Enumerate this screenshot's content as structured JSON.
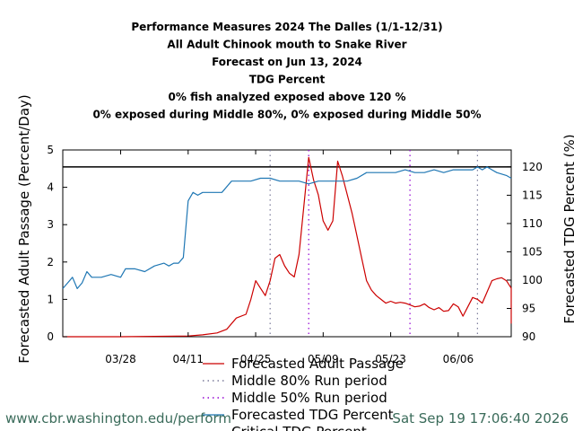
{
  "title_lines": [
    "Performance Measures 2024 The Dalles (1/1-12/31)",
    "All Adult Chinook mouth to Snake River",
    "Forecast on Jun 13, 2024",
    "TDG Percent",
    "0% fish analyzed exposed above 120 %",
    "0% exposed during Middle 80%, 0% exposed during Middle 50%"
  ],
  "footer": {
    "url": "www.cbr.washington.edu/perform",
    "timestamp": "Sat Sep 19 17:06:40 2026"
  },
  "colors": {
    "passage": "#cc0000",
    "tdg": "#1f77b4",
    "mid80": "#7a7a9a",
    "mid50": "#9400d3",
    "critical": "#000000"
  },
  "chart_data": {
    "type": "line",
    "title": "Performance Measures 2024 The Dalles (1/1-12/31)",
    "ylabel": "Forecasted Adult Passage (Percent/Day)",
    "y2label": "Forecasted TDG Percent (%)",
    "ylim": [
      0,
      5
    ],
    "y2lim": [
      90,
      123
    ],
    "xlim": [
      "03/16",
      "06/17"
    ],
    "x_ticks": [
      "03/28",
      "04/11",
      "04/25",
      "05/09",
      "05/23",
      "06/06"
    ],
    "y_ticks": [
      "0",
      "1",
      "2",
      "3",
      "4",
      "5"
    ],
    "y2_ticks": [
      "90",
      "95",
      "100",
      "105",
      "110",
      "115",
      "120"
    ],
    "legend": [
      {
        "label": "Forecasted Adult Passage",
        "style": "line",
        "color": "#cc0000"
      },
      {
        "label": "Middle 80% Run period",
        "style": "dotted",
        "color": "#7a7a9a"
      },
      {
        "label": "Middle 50% Run period",
        "style": "dotted",
        "color": "#9400d3"
      },
      {
        "label": "Forecasted TDG Percent",
        "style": "line",
        "color": "#1f77b4"
      },
      {
        "label": "Critical TDG Percent",
        "style": "line",
        "color": "#000000"
      }
    ],
    "critical_tdg": 120,
    "middle80_period": [
      "04/28",
      "06/10"
    ],
    "middle50_period": [
      "05/06",
      "05/27"
    ],
    "series": [
      {
        "name": "Forecasted Adult Passage",
        "axis": "left",
        "points": [
          [
            "03/16",
            0
          ],
          [
            "03/28",
            0
          ],
          [
            "04/04",
            0.01
          ],
          [
            "04/11",
            0.02
          ],
          [
            "04/14",
            0.05
          ],
          [
            "04/17",
            0.1
          ],
          [
            "04/19",
            0.2
          ],
          [
            "04/21",
            0.5
          ],
          [
            "04/23",
            0.6
          ],
          [
            "04/24",
            1.0
          ],
          [
            "04/25",
            1.5
          ],
          [
            "04/26",
            1.3
          ],
          [
            "04/27",
            1.1
          ],
          [
            "04/28",
            1.5
          ],
          [
            "04/29",
            2.1
          ],
          [
            "04/30",
            2.2
          ],
          [
            "05/01",
            1.9
          ],
          [
            "05/02",
            1.7
          ],
          [
            "05/03",
            1.6
          ],
          [
            "05/04",
            2.2
          ],
          [
            "05/05",
            3.5
          ],
          [
            "05/06",
            4.8
          ],
          [
            "05/07",
            4.2
          ],
          [
            "05/08",
            3.8
          ],
          [
            "05/09",
            3.1
          ],
          [
            "05/10",
            2.85
          ],
          [
            "05/11",
            3.1
          ],
          [
            "05/12",
            4.7
          ],
          [
            "05/13",
            4.3
          ],
          [
            "05/14",
            3.8
          ],
          [
            "05/15",
            3.3
          ],
          [
            "05/16",
            2.7
          ],
          [
            "05/17",
            2.1
          ],
          [
            "05/18",
            1.5
          ],
          [
            "05/19",
            1.25
          ],
          [
            "05/20",
            1.1
          ],
          [
            "05/21",
            1.0
          ],
          [
            "05/22",
            0.9
          ],
          [
            "05/23",
            0.95
          ],
          [
            "05/24",
            0.9
          ],
          [
            "05/25",
            0.92
          ],
          [
            "05/26",
            0.9
          ],
          [
            "05/27",
            0.85
          ],
          [
            "05/28",
            0.8
          ],
          [
            "05/29",
            0.82
          ],
          [
            "05/30",
            0.88
          ],
          [
            "05/31",
            0.78
          ],
          [
            "06/01",
            0.72
          ],
          [
            "06/02",
            0.78
          ],
          [
            "06/03",
            0.68
          ],
          [
            "06/04",
            0.7
          ],
          [
            "06/05",
            0.88
          ],
          [
            "06/06",
            0.8
          ],
          [
            "06/07",
            0.55
          ],
          [
            "06/08",
            0.8
          ],
          [
            "06/09",
            1.05
          ],
          [
            "06/10",
            1.0
          ],
          [
            "06/11",
            0.9
          ],
          [
            "06/12",
            1.2
          ],
          [
            "06/13",
            1.5
          ],
          [
            "06/14",
            1.55
          ],
          [
            "06/15",
            1.58
          ],
          [
            "06/16",
            1.5
          ],
          [
            "06/17",
            1.3
          ],
          [
            "06/18",
            0.35
          ]
        ]
      },
      {
        "name": "Forecasted TDG Percent",
        "axis": "right",
        "points": [
          [
            "03/16",
            98.5
          ],
          [
            "03/17",
            99.5
          ],
          [
            "03/18",
            100.5
          ],
          [
            "03/19",
            98.5
          ],
          [
            "03/20",
            99.5
          ],
          [
            "03/21",
            101.5
          ],
          [
            "03/22",
            100.5
          ],
          [
            "03/24",
            100.5
          ],
          [
            "03/26",
            101
          ],
          [
            "03/28",
            100.5
          ],
          [
            "03/29",
            102
          ],
          [
            "03/31",
            102
          ],
          [
            "04/02",
            101.5
          ],
          [
            "04/04",
            102.5
          ],
          [
            "04/06",
            103
          ],
          [
            "04/07",
            102.5
          ],
          [
            "04/08",
            103
          ],
          [
            "04/09",
            103
          ],
          [
            "04/10",
            104
          ],
          [
            "04/11",
            114
          ],
          [
            "04/12",
            115.5
          ],
          [
            "04/13",
            115
          ],
          [
            "04/14",
            115.5
          ],
          [
            "04/18",
            115.5
          ],
          [
            "04/20",
            117.5
          ],
          [
            "04/22",
            117.5
          ],
          [
            "04/24",
            117.5
          ],
          [
            "04/26",
            118
          ],
          [
            "04/28",
            118
          ],
          [
            "04/30",
            117.5
          ],
          [
            "05/02",
            117.5
          ],
          [
            "05/04",
            117.5
          ],
          [
            "05/06",
            117
          ],
          [
            "05/08",
            117.5
          ],
          [
            "05/10",
            117.5
          ],
          [
            "05/12",
            117.5
          ],
          [
            "05/14",
            117.5
          ],
          [
            "05/16",
            118
          ],
          [
            "05/18",
            119
          ],
          [
            "05/20",
            119
          ],
          [
            "05/22",
            119
          ],
          [
            "05/24",
            119
          ],
          [
            "05/26",
            119.5
          ],
          [
            "05/28",
            119
          ],
          [
            "05/30",
            119
          ],
          [
            "06/01",
            119.5
          ],
          [
            "06/03",
            119
          ],
          [
            "06/05",
            119.5
          ],
          [
            "06/07",
            119.5
          ],
          [
            "06/09",
            119.5
          ],
          [
            "06/10",
            120
          ],
          [
            "06/11",
            119.5
          ],
          [
            "06/12",
            120
          ],
          [
            "06/13",
            119.5
          ],
          [
            "06/14",
            119
          ],
          [
            "06/16",
            118.5
          ],
          [
            "06/18",
            118
          ]
        ]
      }
    ]
  }
}
